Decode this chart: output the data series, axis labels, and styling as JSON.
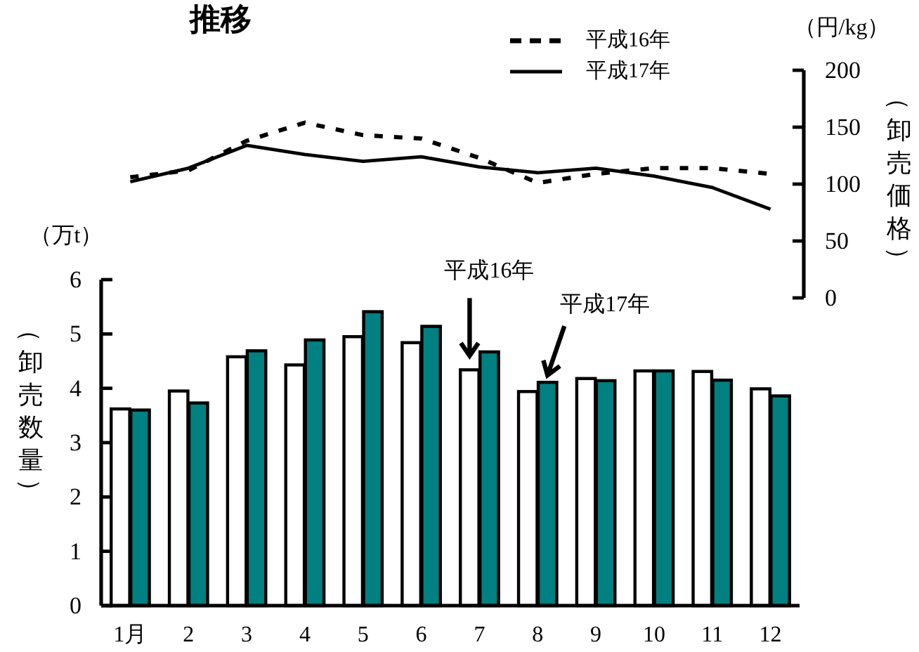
{
  "chart_data": [
    {
      "type": "line",
      "title": "推移",
      "ylabel": "（卸売価格）",
      "annotations": [
        "（円/kg）"
      ],
      "categories": [
        null,
        null,
        null,
        null,
        null,
        null,
        null,
        null,
        null,
        null,
        null,
        null
      ],
      "tick_labels": "y",
      "series": [
        {
          "name": "平成16年",
          "color": "#000000",
          "line_style": "dashed",
          "values": [
            106,
            112,
            138,
            154,
            143,
            140,
            123,
            101,
            109,
            114,
            114,
            109
          ]
        },
        {
          "name": "平成17年",
          "color": "#000000",
          "line_style": "solid",
          "values": [
            102,
            114,
            134,
            126,
            120,
            124,
            115,
            110,
            114,
            107,
            97,
            78
          ]
        }
      ],
      "ylim": [
        0,
        200
      ],
      "yticks": [
        0,
        50,
        100,
        150,
        200
      ],
      "legend": "top"
    },
    {
      "type": "bar",
      "ylabel": "（卸売数量）",
      "annotations": [
        "（万t）",
        "平成16年",
        "平成17年"
      ],
      "x": [
        1,
        2,
        3,
        4,
        5,
        6,
        7,
        8,
        9,
        10,
        11,
        12
      ],
      "xlim": [
        0.5,
        12.5
      ],
      "xticks": [
        {
          "value": 1,
          "label": "1月"
        },
        2,
        3,
        4,
        5,
        6,
        7,
        8,
        9,
        10,
        11,
        12
      ],
      "series": [
        {
          "color": "#ffffff",
          "values": [
            3.62,
            3.95,
            4.58,
            4.43,
            4.95,
            4.84,
            4.34,
            3.94,
            4.18,
            4.32,
            4.31,
            3.99
          ]
        },
        {
          "color": "#008080",
          "values": [
            3.6,
            3.73,
            4.69,
            4.89,
            5.41,
            5.14,
            4.67,
            4.11,
            4.14,
            4.32,
            4.15,
            3.86
          ]
        }
      ],
      "ylim": [
        0,
        6
      ],
      "yticks": [
        0,
        1,
        2,
        3,
        4,
        5,
        6
      ]
    }
  ]
}
